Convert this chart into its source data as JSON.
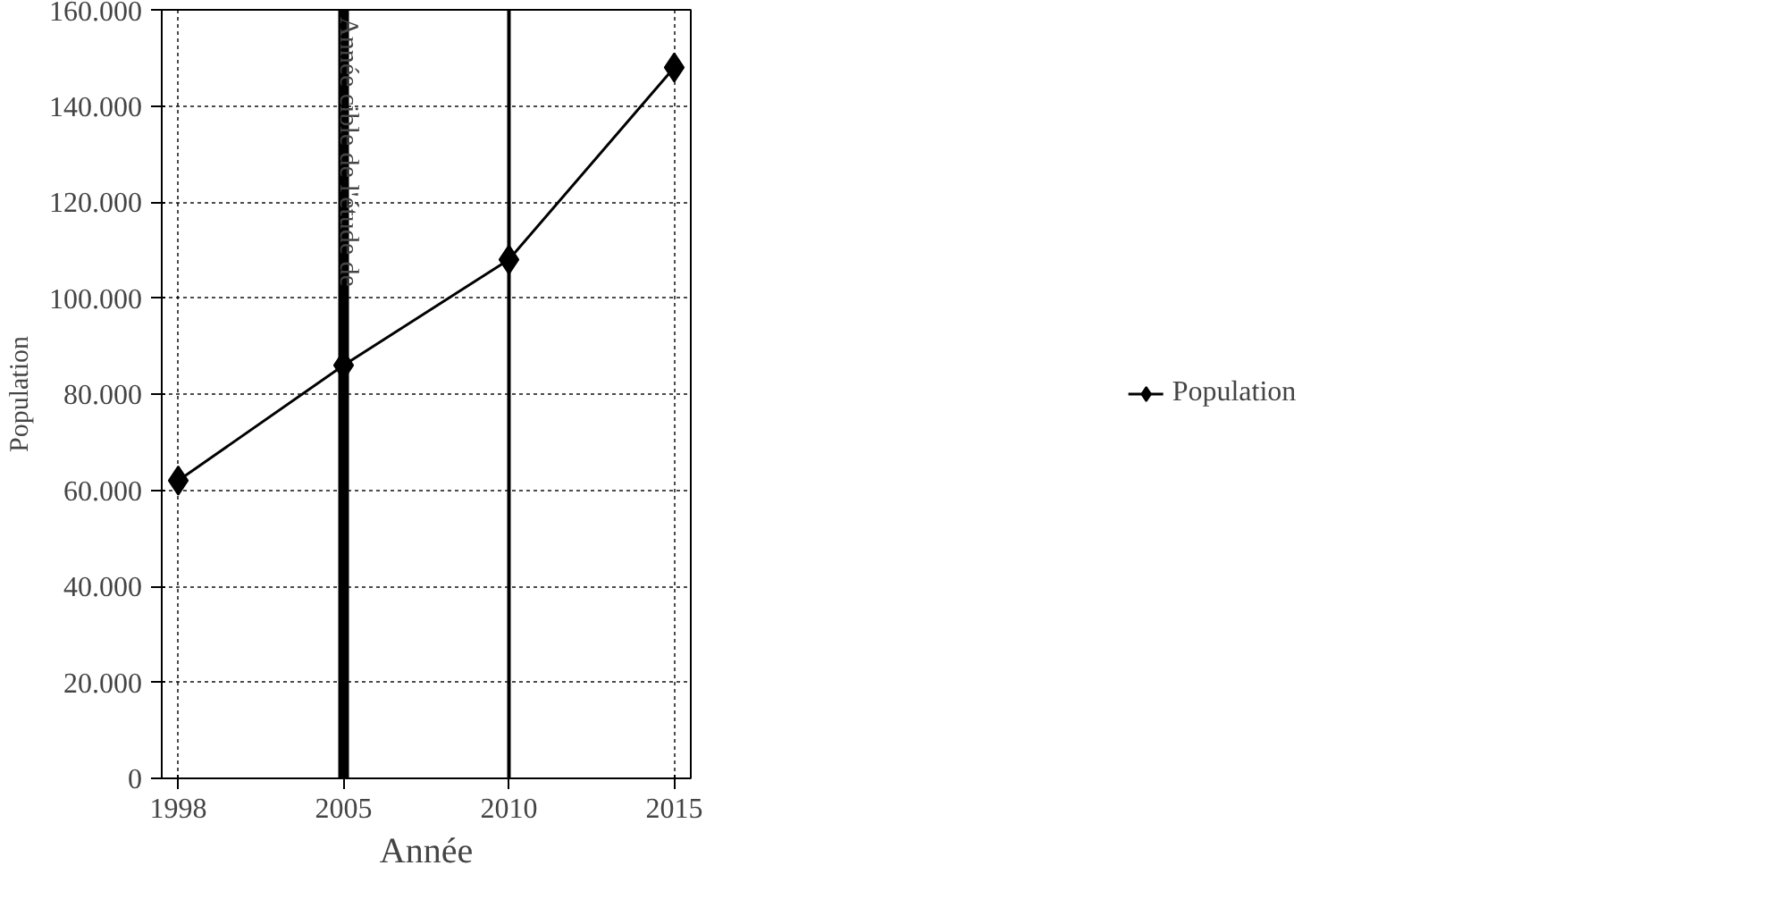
{
  "chart_data": {
    "type": "line",
    "xlabel": "Année",
    "ylabel": "Population",
    "categories": [
      "1998",
      "2005",
      "2010",
      "2015"
    ],
    "series": [
      {
        "name": "Population",
        "color": "#000000",
        "values": [
          62000,
          86000,
          108000,
          148000
        ]
      }
    ],
    "ylim": [
      0,
      160000
    ],
    "yticks": [
      0,
      {
        "value": 20000,
        "label": "20.000"
      },
      {
        "value": 40000,
        "label": "40.000"
      },
      {
        "value": 60000,
        "label": "60.000"
      },
      {
        "value": 80000,
        "label": "80.000"
      },
      {
        "value": 100000,
        "label": "100.000"
      },
      {
        "value": 120000,
        "label": "120.000"
      },
      {
        "value": 140000,
        "label": "140.000"
      },
      {
        "value": 160000,
        "label": "160.000"
      }
    ],
    "ref_lines": [
      {
        "axis": "x",
        "value": "2005",
        "label": "Année cible de l'étude de",
        "color": "#000000"
      },
      {
        "axis": "x",
        "value": "2010",
        "label": null,
        "color": "#000000"
      }
    ],
    "grid": true,
    "legend": "right",
    "marker": "diamond",
    "line_style": "solid"
  }
}
